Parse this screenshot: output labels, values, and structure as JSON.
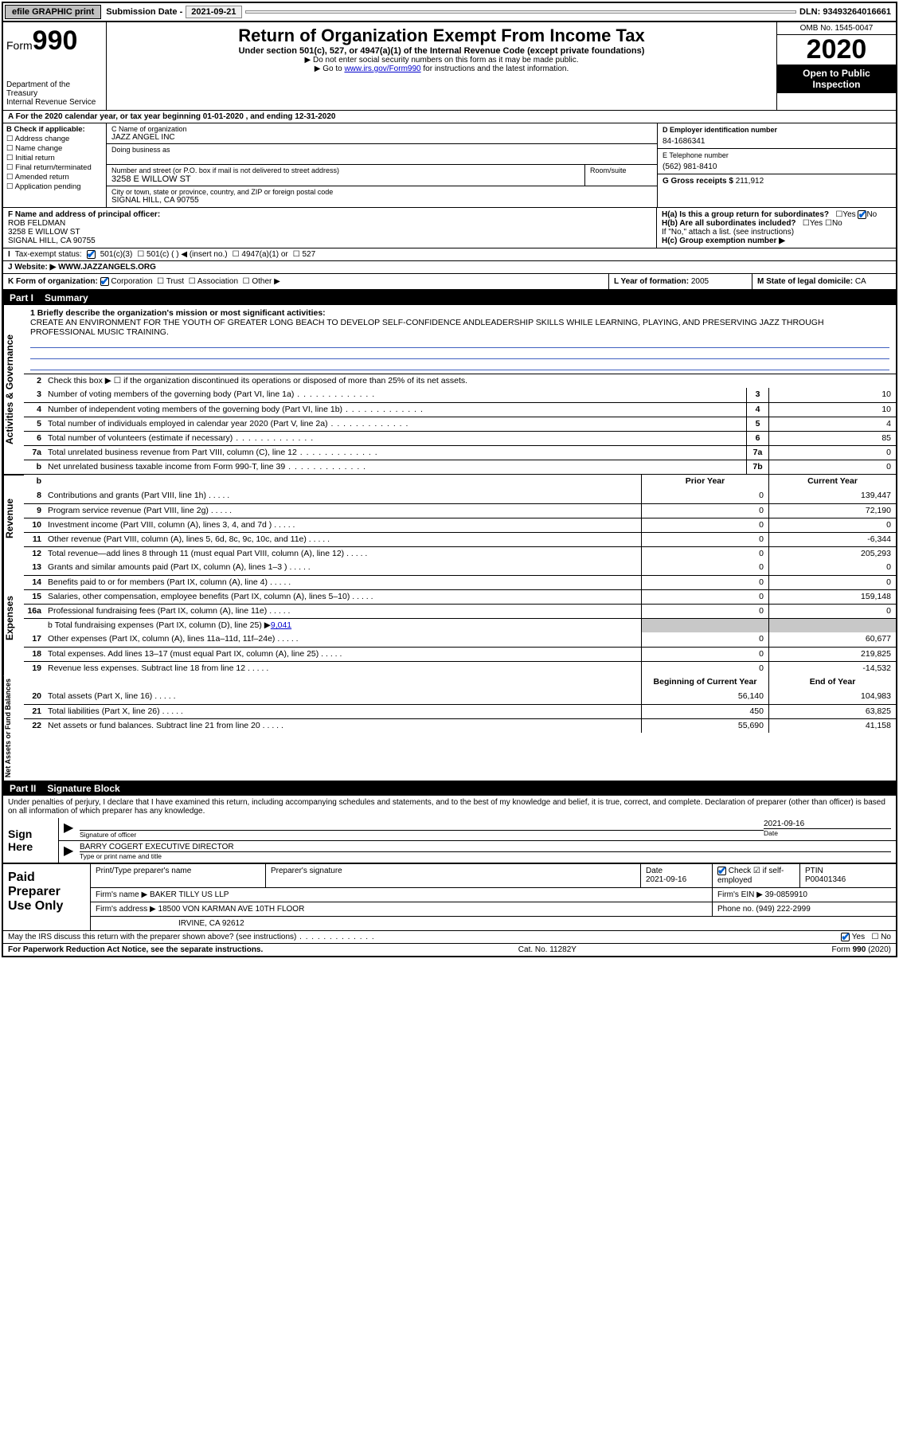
{
  "topbar": {
    "efile": "efile GRAPHIC print",
    "subdate_label": "Submission Date - ",
    "subdate": "2021-09-21",
    "dln_label": "DLN: ",
    "dln": "93493264016661"
  },
  "header": {
    "form_label": "Form",
    "form_num": "990",
    "dept": "Department of the Treasury\nInternal Revenue Service",
    "title": "Return of Organization Exempt From Income Tax",
    "subtitle": "Under section 501(c), 527, or 4947(a)(1) of the Internal Revenue Code (except private foundations)",
    "arrow1": "▶ Do not enter social security numbers on this form as it may be made public.",
    "arrow2_pre": "▶ Go to ",
    "arrow2_link": "www.irs.gov/Form990",
    "arrow2_post": " for instructions and the latest information.",
    "omb": "OMB No. 1545-0047",
    "year": "2020",
    "open_public": "Open to Public Inspection"
  },
  "A": {
    "text": "A For the 2020 calendar year, or tax year beginning 01-01-2020    , and ending 12-31-2020"
  },
  "B": {
    "head": "B Check if applicable:",
    "items": [
      "Address change",
      "Name change",
      "Initial return",
      "Final return/terminated",
      "Amended return",
      "Application pending"
    ]
  },
  "C": {
    "name_head": "C Name of organization",
    "name": "JAZZ ANGEL INC",
    "dba_head": "Doing business as",
    "addr_head": "Number and street (or P.O. box if mail is not delivered to street address)",
    "room_head": "Room/suite",
    "addr": "3258 E WILLOW ST",
    "city_head": "City or town, state or province, country, and ZIP or foreign postal code",
    "city": "SIGNAL HILL, CA  90755"
  },
  "D": {
    "head": "D Employer identification number",
    "val": "84-1686341"
  },
  "E": {
    "head": "E Telephone number",
    "val": "(562) 981-8410"
  },
  "G": {
    "head": "G Gross receipts $ ",
    "val": "211,912"
  },
  "F": {
    "head": "F  Name and address of principal officer:",
    "name": "ROB FELDMAN",
    "addr1": "3258 E WILLOW ST",
    "addr2": "SIGNAL HILL, CA  90755"
  },
  "H": {
    "a": "H(a)  Is this a group return for subordinates?",
    "b": "H(b)  Are all subordinates included?",
    "b_note": "If \"No,\" attach a list. (see instructions)",
    "c": "H(c)  Group exemption number ▶",
    "yes": "Yes",
    "no": "No"
  },
  "I": {
    "label": "Tax-exempt status:",
    "opt1": "501(c)(3)",
    "opt2": "501(c) (  ) ◀ (insert no.)",
    "opt3": "4947(a)(1) or",
    "opt4": "527"
  },
  "J": {
    "label": "J   Website: ▶ ",
    "val": "WWW.JAZZANGELS.ORG"
  },
  "K": {
    "label": "K Form of organization:",
    "opts": [
      "Corporation",
      "Trust",
      "Association",
      "Other ▶"
    ],
    "checked_idx": 0
  },
  "L": {
    "label": "L Year of formation: ",
    "val": "2005"
  },
  "M": {
    "label": "M State of legal domicile: ",
    "val": "CA"
  },
  "part1": {
    "label": "Part I",
    "title": "Summary"
  },
  "mission": {
    "lead": "1  Briefly describe the organization's mission or most significant activities:",
    "text": "CREATE AN ENVIRONMENT FOR THE YOUTH OF GREATER LONG BEACH TO DEVELOP SELF-CONFIDENCE ANDLEADERSHIP SKILLS WHILE LEARNING, PLAYING, AND PRESERVING JAZZ THROUGH PROFESSIONAL MUSIC TRAINING."
  },
  "gov": {
    "l2": "Check this box ▶ ☐  if the organization discontinued its operations or disposed of more than 25% of its net assets.",
    "rows": [
      {
        "n": "3",
        "t": "Number of voting members of the governing body (Part VI, line 1a)",
        "box": "3",
        "v": "10"
      },
      {
        "n": "4",
        "t": "Number of independent voting members of the governing body (Part VI, line 1b)",
        "box": "4",
        "v": "10"
      },
      {
        "n": "5",
        "t": "Total number of individuals employed in calendar year 2020 (Part V, line 2a)",
        "box": "5",
        "v": "4"
      },
      {
        "n": "6",
        "t": "Total number of volunteers (estimate if necessary)",
        "box": "6",
        "v": "85"
      },
      {
        "n": "7a",
        "t": "Total unrelated business revenue from Part VIII, column (C), line 12",
        "box": "7a",
        "v": "0"
      },
      {
        "n": "b",
        "t": "Net unrelated business taxable income from Form 990-T, line 39",
        "box": "7b",
        "v": "0"
      }
    ]
  },
  "cols": {
    "prior": "Prior Year",
    "current": "Current Year"
  },
  "revenue_label": "Revenue",
  "revenue": [
    {
      "n": "8",
      "t": "Contributions and grants (Part VIII, line 1h)",
      "p": "0",
      "c": "139,447"
    },
    {
      "n": "9",
      "t": "Program service revenue (Part VIII, line 2g)",
      "p": "0",
      "c": "72,190"
    },
    {
      "n": "10",
      "t": "Investment income (Part VIII, column (A), lines 3, 4, and 7d )",
      "p": "0",
      "c": "0"
    },
    {
      "n": "11",
      "t": "Other revenue (Part VIII, column (A), lines 5, 6d, 8c, 9c, 10c, and 11e)",
      "p": "0",
      "c": "-6,344"
    },
    {
      "n": "12",
      "t": "Total revenue—add lines 8 through 11 (must equal Part VIII, column (A), line 12)",
      "p": "0",
      "c": "205,293"
    }
  ],
  "expenses_label": "Expenses",
  "expenses": [
    {
      "n": "13",
      "t": "Grants and similar amounts paid (Part IX, column (A), lines 1–3 )",
      "p": "0",
      "c": "0"
    },
    {
      "n": "14",
      "t": "Benefits paid to or for members (Part IX, column (A), line 4)",
      "p": "0",
      "c": "0"
    },
    {
      "n": "15",
      "t": "Salaries, other compensation, employee benefits (Part IX, column (A), lines 5–10)",
      "p": "0",
      "c": "159,148"
    },
    {
      "n": "16a",
      "t": "Professional fundraising fees (Part IX, column (A), line 11e)",
      "p": "0",
      "c": "0"
    }
  ],
  "exp_b": {
    "t": "b  Total fundraising expenses (Part IX, column (D), line 25) ▶",
    "v": "9,041"
  },
  "expenses2": [
    {
      "n": "17",
      "t": "Other expenses (Part IX, column (A), lines 11a–11d, 11f–24e)",
      "p": "0",
      "c": "60,677"
    },
    {
      "n": "18",
      "t": "Total expenses. Add lines 13–17 (must equal Part IX, column (A), line 25)",
      "p": "0",
      "c": "219,825"
    },
    {
      "n": "19",
      "t": "Revenue less expenses. Subtract line 18 from line 12",
      "p": "0",
      "c": "-14,532"
    }
  ],
  "net_label": "Net Assets or Fund Balances",
  "netcols": {
    "begin": "Beginning of Current Year",
    "end": "End of Year"
  },
  "net": [
    {
      "n": "20",
      "t": "Total assets (Part X, line 16)",
      "b": "56,140",
      "e": "104,983"
    },
    {
      "n": "21",
      "t": "Total liabilities (Part X, line 26)",
      "b": "450",
      "e": "63,825"
    },
    {
      "n": "22",
      "t": "Net assets or fund balances. Subtract line 21 from line 20",
      "b": "55,690",
      "e": "41,158"
    }
  ],
  "part2": {
    "label": "Part II",
    "title": "Signature Block"
  },
  "penalties": "Under penalties of perjury, I declare that I have examined this return, including accompanying schedules and statements, and to the best of my knowledge and belief, it is true, correct, and complete. Declaration of preparer (other than officer) is based on all information of which preparer has any knowledge.",
  "sign": {
    "here": "Sign Here",
    "sig_officer": "Signature of officer",
    "date": "2021-09-16",
    "date_lab": "Date",
    "name": "BARRY COGERT  EXECUTIVE DIRECTOR",
    "name_lab": "Type or print name and title"
  },
  "prep": {
    "label": "Paid Preparer Use Only",
    "h1": "Print/Type preparer's name",
    "h2": "Preparer's signature",
    "h3": "Date",
    "h3v": "2021-09-16",
    "h4": "Check ☑ if self-employed",
    "h5": "PTIN",
    "h5v": "P00401346",
    "firm_lab": "Firm's name    ▶ ",
    "firm": "BAKER TILLY US LLP",
    "ein_lab": "Firm's EIN ▶ ",
    "ein": "39-0859910",
    "addr_lab": "Firm's address ▶ ",
    "addr1": "18500 VON KARMAN AVE 10TH FLOOR",
    "addr2": "IRVINE, CA  92612",
    "phone_lab": "Phone no. ",
    "phone": "(949) 222-2999"
  },
  "discuss": {
    "q": "May the IRS discuss this return with the preparer shown above? (see instructions)",
    "yes": "Yes",
    "no": "No"
  },
  "footer": {
    "left": "For Paperwork Reduction Act Notice, see the separate instructions.",
    "mid": "Cat. No. 11282Y",
    "right": "Form 990 (2020)"
  },
  "vtabs": {
    "gov": "Activities & Governance"
  }
}
